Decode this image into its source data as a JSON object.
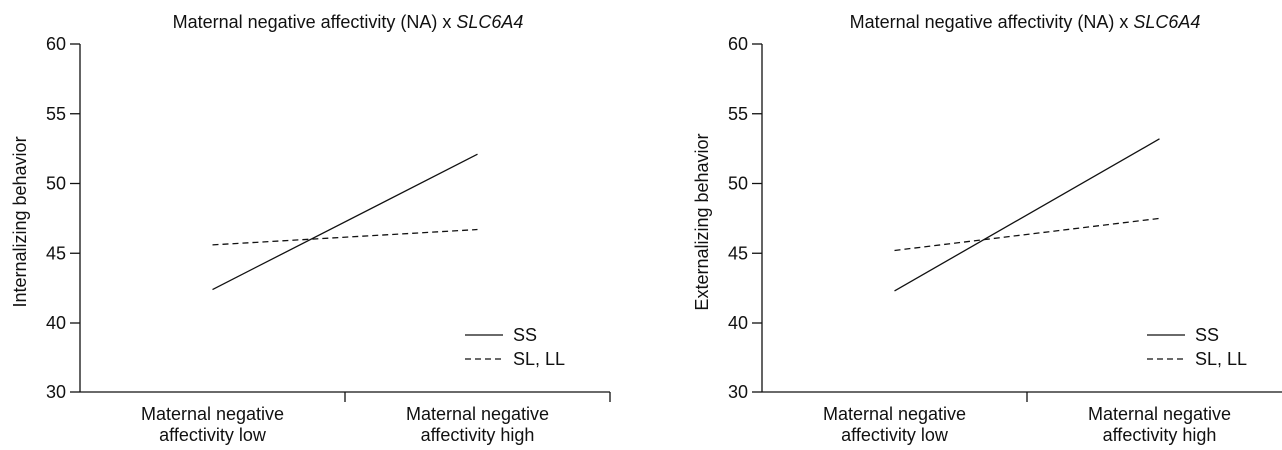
{
  "chart_data": [
    {
      "type": "line",
      "title": {
        "prefix": "Maternal negative affectivity (NA) x ",
        "gene": "SLC6A4"
      },
      "xlabel": "",
      "ylabel": "Internalizing behavior",
      "categories": [
        {
          "lines": [
            "Maternal negative",
            "affectivity  low"
          ]
        },
        {
          "lines": [
            "Maternal negative",
            "affectivity  high"
          ]
        }
      ],
      "yticks": [
        "30",
        "40",
        "45",
        "50",
        "55",
        "60"
      ],
      "ylim": [
        30,
        60
      ],
      "axis_break": true,
      "legend_position": "bottom-right",
      "series": [
        {
          "name": "SS",
          "style": "solid",
          "values": [
            42.4,
            52.1
          ]
        },
        {
          "name": "SL, LL",
          "style": "dashed",
          "values": [
            45.6,
            46.7
          ]
        }
      ]
    },
    {
      "type": "line",
      "title": {
        "prefix": "Maternal negative affectivity (NA) x ",
        "gene": "SLC6A4"
      },
      "xlabel": "",
      "ylabel": "Externalizing behavior",
      "categories": [
        {
          "lines": [
            "Maternal negative",
            "affectivity  low"
          ]
        },
        {
          "lines": [
            "Maternal negative",
            "affectivity  high"
          ]
        }
      ],
      "yticks": [
        "30",
        "40",
        "45",
        "50",
        "55",
        "60"
      ],
      "ylim": [
        30,
        60
      ],
      "axis_break": true,
      "legend_position": "bottom-right",
      "series": [
        {
          "name": "SS",
          "style": "solid",
          "values": [
            42.3,
            53.2
          ]
        },
        {
          "name": "SL, LL",
          "style": "dashed",
          "values": [
            45.2,
            47.5
          ]
        }
      ]
    }
  ]
}
